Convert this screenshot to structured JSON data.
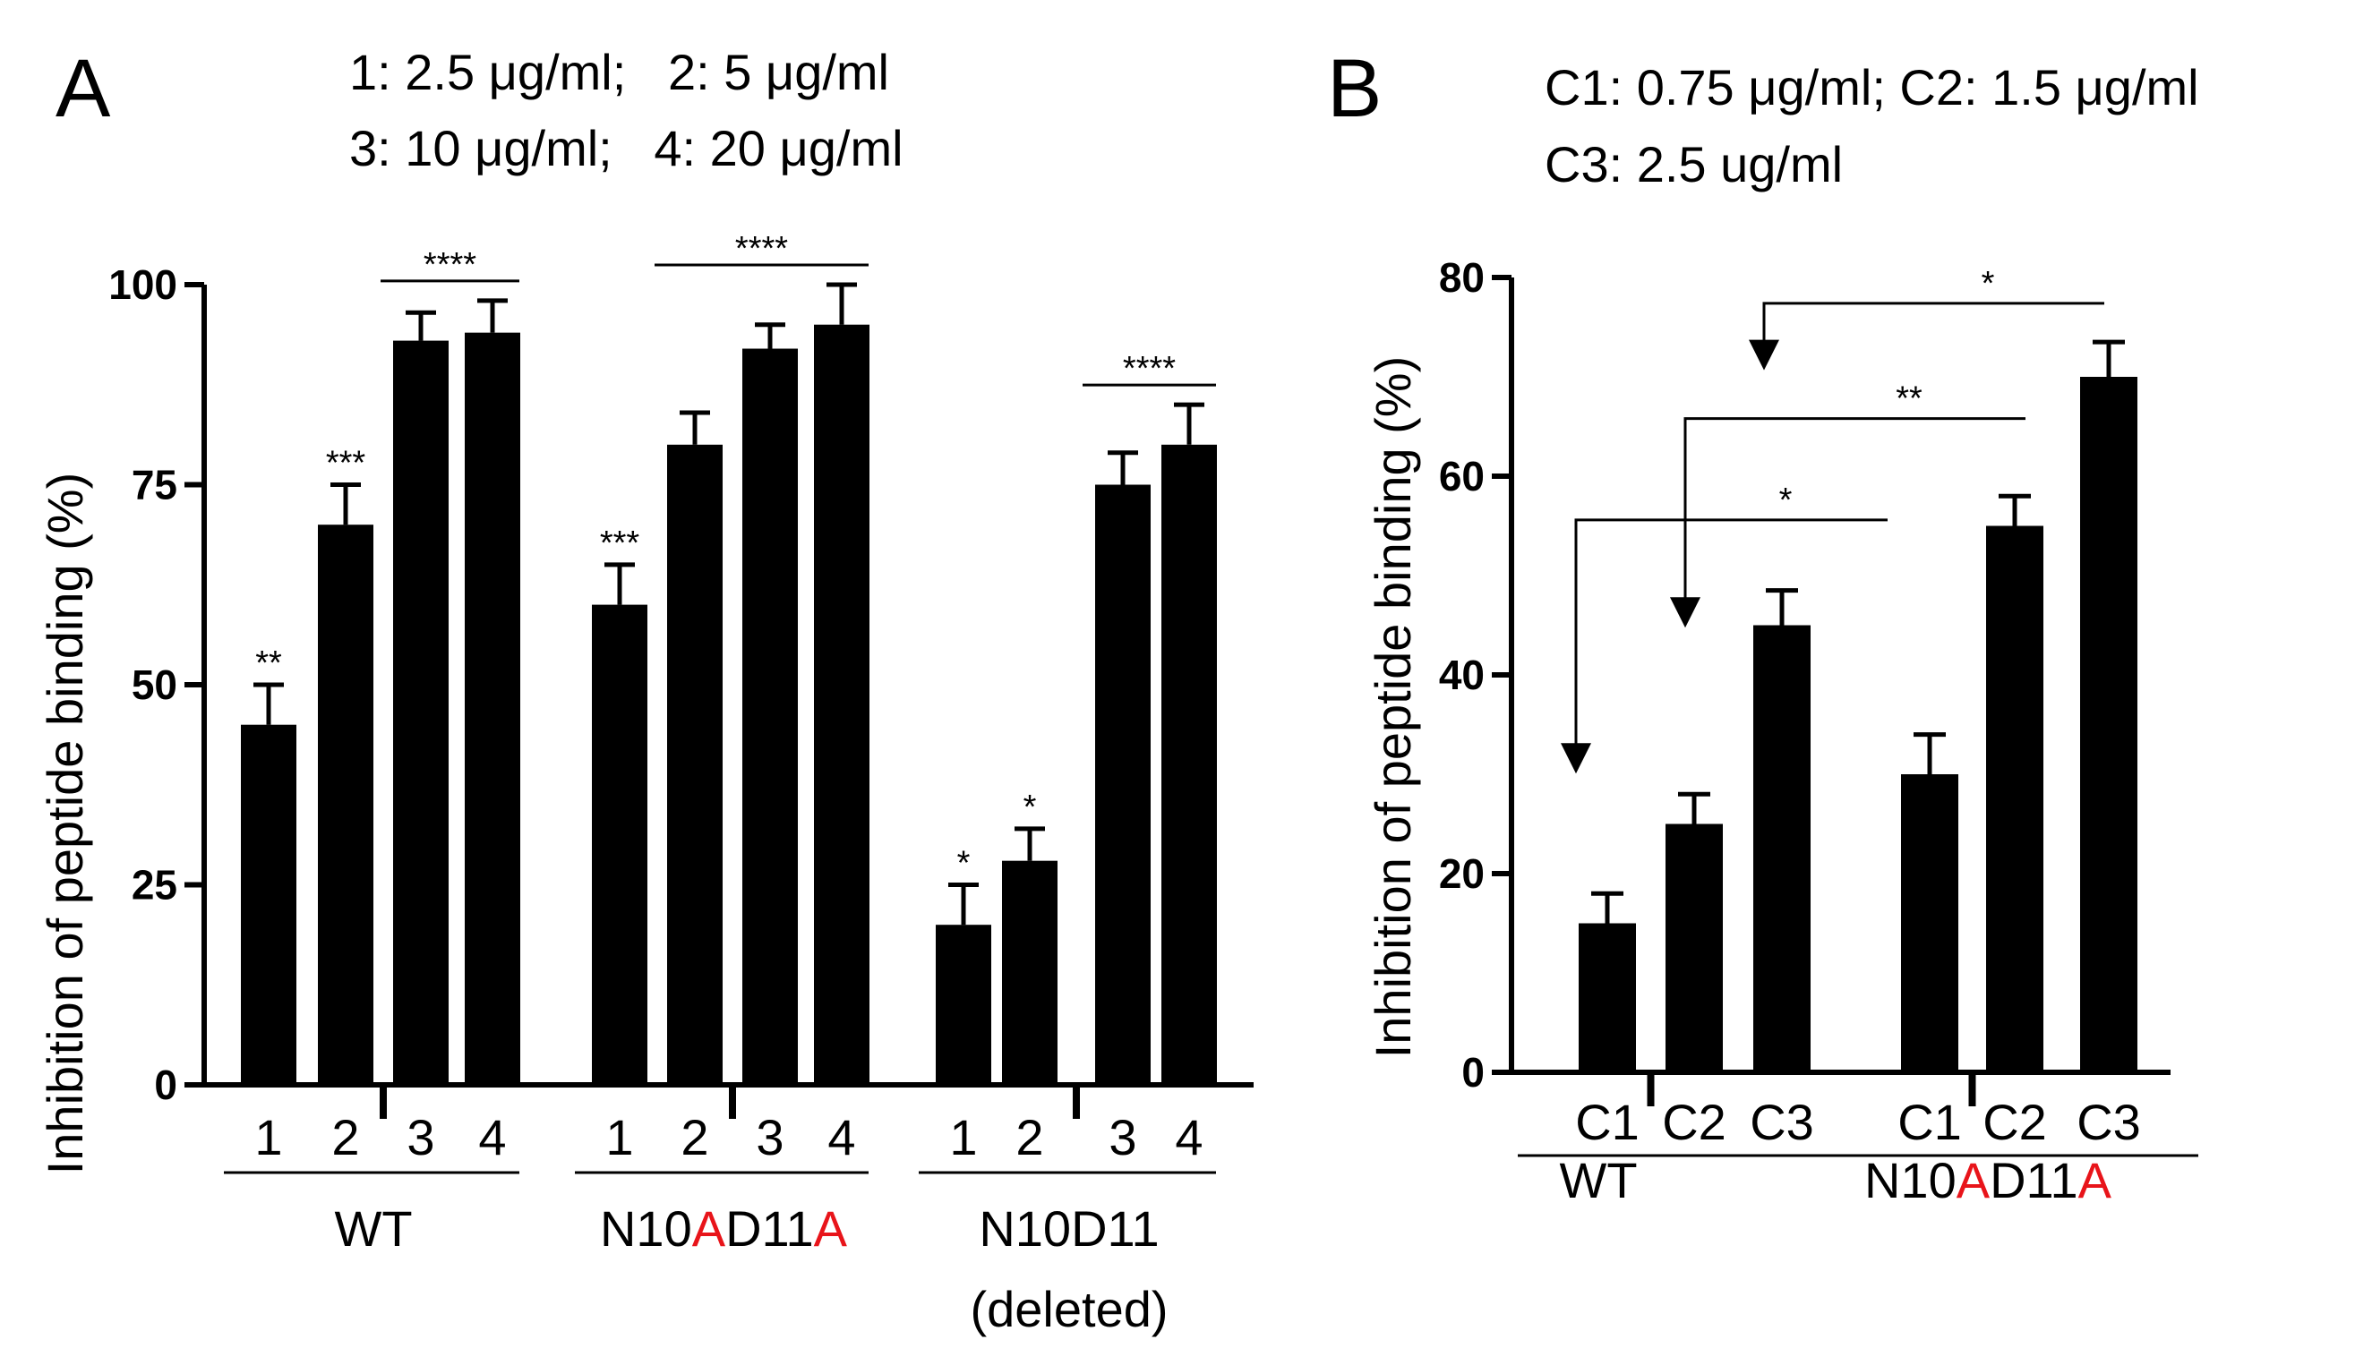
{
  "panels": [
    {
      "letter": "A",
      "legend": [
        "1: 2.5 μg/ml;   2: 5 μg/ml",
        "3: 10 μg/ml;   4: 20 μg/ml"
      ],
      "ylabel": "Inhibition of peptide binding (%)",
      "groups": [
        {
          "parts": [
            {
              "text": "WT",
              "color": "#000000"
            }
          ]
        },
        {
          "parts": [
            {
              "text": "N10",
              "color": "#000000"
            },
            {
              "text": "A",
              "color": "#e8141a"
            },
            {
              "text": "D11",
              "color": "#000000"
            },
            {
              "text": "A",
              "color": "#e8141a"
            }
          ]
        },
        {
          "parts": [
            {
              "text": "N10D11",
              "color": "#000000"
            }
          ],
          "line2": "(deleted)"
        }
      ]
    },
    {
      "letter": "B",
      "legend": [
        "C1: 0.75 μg/ml; C2: 1.5 μg/ml",
        "C3: 2.5 ug/ml"
      ],
      "ylabel": "Inhibition of peptide binding (%)",
      "groups": [
        {
          "parts": [
            {
              "text": "WT",
              "color": "#000000"
            }
          ]
        },
        {
          "parts": [
            {
              "text": "N10",
              "color": "#000000"
            },
            {
              "text": "A",
              "color": "#e8141a"
            },
            {
              "text": "D11",
              "color": "#000000"
            },
            {
              "text": "A",
              "color": "#e8141a"
            }
          ]
        }
      ]
    }
  ],
  "chart_data": [
    {
      "type": "bar",
      "ylabel": "Inhibition of peptide binding (%)",
      "ylim": [
        0,
        100
      ],
      "yticks": [
        0,
        25,
        50,
        75,
        100
      ],
      "grid": false,
      "groups": [
        {
          "name": "WT",
          "categories": [
            "1",
            "2",
            "3",
            "4"
          ],
          "values": [
            45,
            70,
            93,
            94
          ],
          "errors": [
            5,
            5,
            3.5,
            4
          ],
          "stars": [
            "**",
            "***",
            "",
            ""
          ]
        },
        {
          "name": "N10AD11A",
          "categories": [
            "1",
            "2",
            "3",
            "4"
          ],
          "values": [
            60,
            80,
            92,
            95
          ],
          "errors": [
            5,
            4,
            3,
            5
          ],
          "stars": [
            "***",
            "",
            "",
            ""
          ]
        },
        {
          "name": "N10D11 (deleted)",
          "categories": [
            "1",
            "2",
            "3",
            "4"
          ],
          "values": [
            20,
            28,
            75,
            80
          ],
          "errors": [
            5,
            4,
            4,
            5
          ],
          "stars": [
            "*",
            "*",
            "",
            ""
          ]
        }
      ],
      "brackets": [
        {
          "group": 0,
          "from": 2,
          "to": 3,
          "label": "****"
        },
        {
          "group": 1,
          "from": 1,
          "to": 3,
          "label": "****"
        },
        {
          "group": 2,
          "from": 2,
          "to": 3,
          "label": "****"
        }
      ]
    },
    {
      "type": "bar",
      "ylabel": "Inhibition of peptide binding (%)",
      "ylim": [
        0,
        80
      ],
      "yticks": [
        0,
        20,
        40,
        60,
        80
      ],
      "grid": false,
      "groups": [
        {
          "name": "WT",
          "categories": [
            "C1",
            "C2",
            "C3"
          ],
          "values": [
            15,
            25,
            45
          ],
          "errors": [
            3,
            3,
            3.5
          ]
        },
        {
          "name": "N10AD11A",
          "categories": [
            "C1",
            "C2",
            "C3"
          ],
          "values": [
            30,
            55,
            70
          ],
          "errors": [
            4,
            3,
            3.5
          ]
        }
      ],
      "comparisons": [
        {
          "from": "WT C1",
          "to": "N10AD11A C1",
          "label": "*"
        },
        {
          "from": "WT C2",
          "to": "N10AD11A C2",
          "label": "**"
        },
        {
          "from": "WT C3",
          "to": "N10AD11A C3",
          "label": "*"
        }
      ]
    }
  ]
}
